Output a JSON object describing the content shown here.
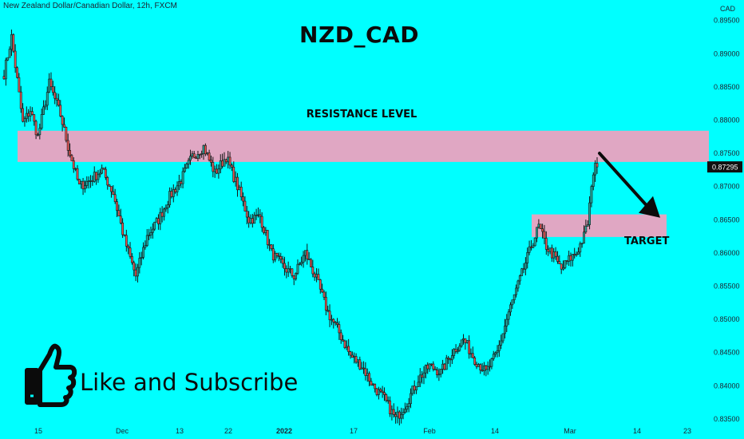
{
  "header": {
    "symbol_desc": "New Zealand Dollar/Canadian Dollar, 12h, FXCM",
    "currency": "CAD"
  },
  "annotations": {
    "title": "NZD_CAD",
    "resistance_label": "RESISTANCE LEVEL",
    "target_label": "TARGET",
    "cta_text": "Like and Subscribe",
    "cta_icon": "thumbs-up-icon"
  },
  "colors": {
    "background": "#00ffff",
    "bull": "#26a69a",
    "bear": "#ef5350",
    "wick": "#141414",
    "zone": "#e0a7c3",
    "price_tag": "#101010"
  },
  "chart_data": {
    "type": "candlestick",
    "symbol": "NZDCAD",
    "timeframe": "12h",
    "ylim": [
      0.8335,
      0.8958
    ],
    "y_ticks": [
      "0.89500",
      "0.89000",
      "0.88500",
      "0.88000",
      "0.87500",
      "0.87000",
      "0.86500",
      "0.86000",
      "0.85500",
      "0.85000",
      "0.84500",
      "0.84000",
      "0.83500"
    ],
    "x_ticks": [
      "15",
      "Dec",
      "13",
      "22",
      "2022",
      "17",
      "Feb",
      "14",
      "Mar",
      "14",
      "23"
    ],
    "last_price": "0.87295",
    "waypoints": [
      [
        0,
        0.887
      ],
      [
        4,
        0.8925
      ],
      [
        10,
        0.8795
      ],
      [
        14,
        0.8815
      ],
      [
        18,
        0.8775
      ],
      [
        24,
        0.8855
      ],
      [
        30,
        0.8808
      ],
      [
        34,
        0.876
      ],
      [
        40,
        0.87
      ],
      [
        46,
        0.871
      ],
      [
        52,
        0.8725
      ],
      [
        58,
        0.869
      ],
      [
        64,
        0.862
      ],
      [
        70,
        0.8565
      ],
      [
        76,
        0.8625
      ],
      [
        82,
        0.865
      ],
      [
        88,
        0.8685
      ],
      [
        94,
        0.871
      ],
      [
        100,
        0.8745
      ],
      [
        106,
        0.876
      ],
      [
        112,
        0.872
      ],
      [
        118,
        0.8745
      ],
      [
        124,
        0.87
      ],
      [
        130,
        0.865
      ],
      [
        136,
        0.8655
      ],
      [
        142,
        0.86
      ],
      [
        148,
        0.858
      ],
      [
        154,
        0.8565
      ],
      [
        160,
        0.86
      ],
      [
        166,
        0.856
      ],
      [
        172,
        0.851
      ],
      [
        178,
        0.848
      ],
      [
        184,
        0.8445
      ],
      [
        190,
        0.843
      ],
      [
        196,
        0.84
      ],
      [
        202,
        0.838
      ],
      [
        208,
        0.835
      ],
      [
        214,
        0.8375
      ],
      [
        220,
        0.841
      ],
      [
        226,
        0.843
      ],
      [
        232,
        0.842
      ],
      [
        238,
        0.845
      ],
      [
        244,
        0.847
      ],
      [
        250,
        0.844
      ],
      [
        256,
        0.842
      ],
      [
        262,
        0.845
      ],
      [
        268,
        0.851
      ],
      [
        274,
        0.856
      ],
      [
        280,
        0.861
      ],
      [
        284,
        0.864
      ],
      [
        288,
        0.861
      ],
      [
        292,
        0.8595
      ],
      [
        296,
        0.8575
      ],
      [
        300,
        0.859
      ],
      [
        304,
        0.86
      ],
      [
        308,
        0.8625
      ],
      [
        310,
        0.8645
      ],
      [
        312,
        0.87
      ],
      [
        314,
        0.8735
      ]
    ],
    "resistance_zone": [
      0.8737,
      0.8784
    ],
    "target_zone": [
      0.8624,
      0.8658
    ],
    "arrow": {
      "from": [
        "2022-03-05",
        0.875
      ],
      "to": [
        "2022-03-21",
        0.8655
      ]
    }
  }
}
